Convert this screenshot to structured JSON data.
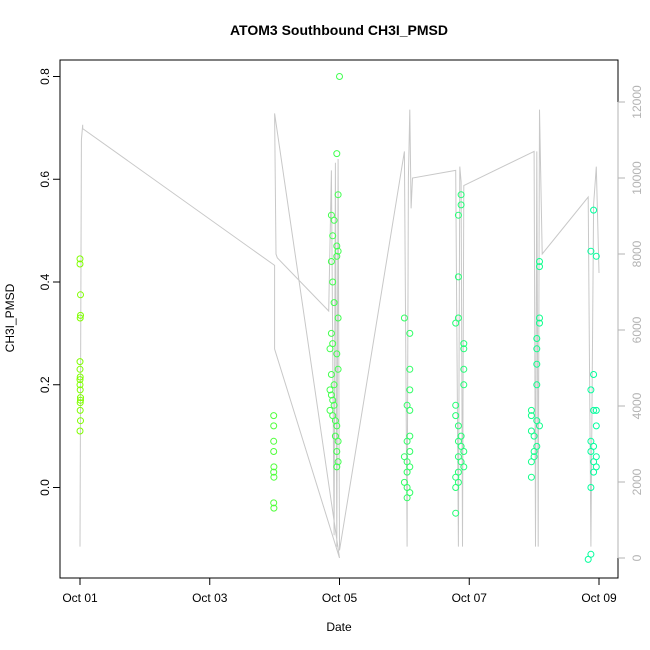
{
  "chart_data": {
    "type": "scatter",
    "title": "ATOM3 Southbound CH3I_PMSD",
    "xlabel": "Date",
    "ylabel": "CH3I_PMSD",
    "xlim": [
      "2016-10-01",
      "2016-10-09"
    ],
    "ylim": [
      -0.14,
      0.8
    ],
    "x_ticks": [
      {
        "value": "2016-10-01",
        "label": "Oct 01"
      },
      {
        "value": "2016-10-03",
        "label": "Oct 03"
      },
      {
        "value": "2016-10-05",
        "label": "Oct 05"
      },
      {
        "value": "2016-10-07",
        "label": "Oct 07"
      },
      {
        "value": "2016-10-09",
        "label": "Oct 09"
      }
    ],
    "y_ticks": [
      0.0,
      0.2,
      0.4,
      0.6,
      0.8
    ],
    "y_tick_labels": [
      "0.0",
      "0.2",
      "0.4",
      "0.6",
      "0.8"
    ],
    "y2_range": [
      0,
      12000
    ],
    "y2_ticks": [
      0,
      2000,
      4000,
      6000,
      8000,
      10000,
      12000
    ],
    "y2_tick_labels": [
      "0",
      "2000",
      "4000",
      "6000",
      "8000",
      "10000",
      "12000"
    ],
    "grid": false,
    "legend": "none",
    "colors": {
      "line": "#c8c8c8",
      "axis": "#000000",
      "right_axis": "#b3b3b3"
    },
    "series": [
      {
        "marker": "open-circle",
        "color_scale": [
          "#80ff00",
          "#00ff9f"
        ],
        "points": [
          {
            "x": "2016-10-01T00:00",
            "y": 0.445
          },
          {
            "x": "2016-10-01T00:00",
            "y": 0.435
          },
          {
            "x": "2016-10-01T00:05",
            "y": 0.33
          },
          {
            "x": "2016-10-01T00:10",
            "y": 0.335
          },
          {
            "x": "2016-10-01T00:10",
            "y": 0.375
          },
          {
            "x": "2016-10-01T00:00",
            "y": 0.245
          },
          {
            "x": "2016-10-01T00:00",
            "y": 0.23
          },
          {
            "x": "2016-10-01T00:05",
            "y": 0.215
          },
          {
            "x": "2016-10-01T00:00",
            "y": 0.21
          },
          {
            "x": "2016-10-01T00:00",
            "y": 0.2
          },
          {
            "x": "2016-10-01T00:05",
            "y": 0.19
          },
          {
            "x": "2016-10-01T00:10",
            "y": 0.175
          },
          {
            "x": "2016-10-01T00:10",
            "y": 0.17
          },
          {
            "x": "2016-10-01T00:05",
            "y": 0.165
          },
          {
            "x": "2016-10-01T00:05",
            "y": 0.15
          },
          {
            "x": "2016-10-01T00:10",
            "y": 0.13
          },
          {
            "x": "2016-10-01T00:00",
            "y": 0.11
          },
          {
            "x": "2016-10-03T23:40",
            "y": 0.14
          },
          {
            "x": "2016-10-03T23:40",
            "y": 0.12
          },
          {
            "x": "2016-10-03T23:40",
            "y": 0.09
          },
          {
            "x": "2016-10-03T23:40",
            "y": 0.07
          },
          {
            "x": "2016-10-03T23:45",
            "y": 0.04
          },
          {
            "x": "2016-10-03T23:40",
            "y": 0.03
          },
          {
            "x": "2016-10-03T23:45",
            "y": 0.02
          },
          {
            "x": "2016-10-03T23:40",
            "y": -0.03
          },
          {
            "x": "2016-10-03T23:45",
            "y": -0.04
          },
          {
            "x": "2016-10-04T21:00",
            "y": 0.53
          },
          {
            "x": "2016-10-04T22:00",
            "y": 0.52
          },
          {
            "x": "2016-10-04T21:30",
            "y": 0.49
          },
          {
            "x": "2016-10-04T21:00",
            "y": 0.44
          },
          {
            "x": "2016-10-04T21:30",
            "y": 0.4
          },
          {
            "x": "2016-10-04T22:00",
            "y": 0.36
          },
          {
            "x": "2016-10-04T21:00",
            "y": 0.3
          },
          {
            "x": "2016-10-04T21:30",
            "y": 0.28
          },
          {
            "x": "2016-10-04T20:30",
            "y": 0.27
          },
          {
            "x": "2016-10-04T21:00",
            "y": 0.22
          },
          {
            "x": "2016-10-04T22:00",
            "y": 0.2
          },
          {
            "x": "2016-10-04T20:30",
            "y": 0.19
          },
          {
            "x": "2016-10-04T21:00",
            "y": 0.18
          },
          {
            "x": "2016-10-04T21:30",
            "y": 0.17
          },
          {
            "x": "2016-10-04T22:00",
            "y": 0.16
          },
          {
            "x": "2016-10-04T20:30",
            "y": 0.15
          },
          {
            "x": "2016-10-04T21:30",
            "y": 0.14
          },
          {
            "x": "2016-10-04T22:30",
            "y": 0.13
          },
          {
            "x": "2016-10-04T23:00",
            "y": 0.12
          },
          {
            "x": "2016-10-04T22:30",
            "y": 0.1
          },
          {
            "x": "2016-10-04T23:30",
            "y": 0.09
          },
          {
            "x": "2016-10-04T23:00",
            "y": 0.07
          },
          {
            "x": "2016-10-04T23:30",
            "y": 0.05
          },
          {
            "x": "2016-10-04T23:00",
            "y": 0.04
          },
          {
            "x": "2016-10-04T23:00",
            "y": 0.65
          },
          {
            "x": "2016-10-04T23:30",
            "y": 0.57
          },
          {
            "x": "2016-10-04T23:00",
            "y": 0.47
          },
          {
            "x": "2016-10-04T23:30",
            "y": 0.46
          },
          {
            "x": "2016-10-04T23:00",
            "y": 0.45
          },
          {
            "x": "2016-10-04T23:30",
            "y": 0.33
          },
          {
            "x": "2016-10-04T23:00",
            "y": 0.26
          },
          {
            "x": "2016-10-04T23:30",
            "y": 0.23
          },
          {
            "x": "2016-10-05T00:00",
            "y": 0.8
          },
          {
            "x": "2016-10-06T00:00",
            "y": 0.33
          },
          {
            "x": "2016-10-06T02:00",
            "y": 0.3
          },
          {
            "x": "2016-10-06T02:00",
            "y": 0.23
          },
          {
            "x": "2016-10-06T02:00",
            "y": 0.19
          },
          {
            "x": "2016-10-06T01:00",
            "y": 0.16
          },
          {
            "x": "2016-10-06T02:00",
            "y": 0.15
          },
          {
            "x": "2016-10-06T02:00",
            "y": 0.1
          },
          {
            "x": "2016-10-06T01:00",
            "y": 0.09
          },
          {
            "x": "2016-10-06T02:00",
            "y": 0.07
          },
          {
            "x": "2016-10-06T00:00",
            "y": 0.06
          },
          {
            "x": "2016-10-06T01:00",
            "y": 0.05
          },
          {
            "x": "2016-10-06T02:00",
            "y": 0.04
          },
          {
            "x": "2016-10-06T01:00",
            "y": 0.03
          },
          {
            "x": "2016-10-06T00:00",
            "y": 0.01
          },
          {
            "x": "2016-10-06T01:00",
            "y": 0.0
          },
          {
            "x": "2016-10-06T02:00",
            "y": -0.01
          },
          {
            "x": "2016-10-06T01:00",
            "y": -0.02
          },
          {
            "x": "2016-10-06T21:00",
            "y": 0.57
          },
          {
            "x": "2016-10-06T21:00",
            "y": 0.55
          },
          {
            "x": "2016-10-06T20:00",
            "y": 0.53
          },
          {
            "x": "2016-10-06T20:00",
            "y": 0.41
          },
          {
            "x": "2016-10-06T20:00",
            "y": 0.33
          },
          {
            "x": "2016-10-06T19:00",
            "y": 0.32
          },
          {
            "x": "2016-10-06T22:00",
            "y": 0.28
          },
          {
            "x": "2016-10-06T22:00",
            "y": 0.27
          },
          {
            "x": "2016-10-06T22:00",
            "y": 0.23
          },
          {
            "x": "2016-10-06T22:00",
            "y": 0.2
          },
          {
            "x": "2016-10-06T19:00",
            "y": 0.16
          },
          {
            "x": "2016-10-06T19:00",
            "y": 0.14
          },
          {
            "x": "2016-10-06T20:00",
            "y": 0.12
          },
          {
            "x": "2016-10-06T21:00",
            "y": 0.1
          },
          {
            "x": "2016-10-06T20:00",
            "y": 0.09
          },
          {
            "x": "2016-10-06T21:00",
            "y": 0.08
          },
          {
            "x": "2016-10-06T22:00",
            "y": 0.07
          },
          {
            "x": "2016-10-06T20:00",
            "y": 0.06
          },
          {
            "x": "2016-10-06T21:00",
            "y": 0.05
          },
          {
            "x": "2016-10-06T22:00",
            "y": 0.04
          },
          {
            "x": "2016-10-06T20:00",
            "y": 0.03
          },
          {
            "x": "2016-10-06T19:00",
            "y": 0.02
          },
          {
            "x": "2016-10-06T20:00",
            "y": 0.01
          },
          {
            "x": "2016-10-06T19:00",
            "y": 0.0
          },
          {
            "x": "2016-10-06T19:00",
            "y": -0.05
          },
          {
            "x": "2016-10-08T02:00",
            "y": 0.44
          },
          {
            "x": "2016-10-08T02:00",
            "y": 0.43
          },
          {
            "x": "2016-10-08T02:00",
            "y": 0.33
          },
          {
            "x": "2016-10-08T02:00",
            "y": 0.32
          },
          {
            "x": "2016-10-08T01:00",
            "y": 0.29
          },
          {
            "x": "2016-10-08T01:00",
            "y": 0.27
          },
          {
            "x": "2016-10-08T01:00",
            "y": 0.24
          },
          {
            "x": "2016-10-08T01:00",
            "y": 0.2
          },
          {
            "x": "2016-10-07T23:00",
            "y": 0.15
          },
          {
            "x": "2016-10-07T23:00",
            "y": 0.14
          },
          {
            "x": "2016-10-08T01:00",
            "y": 0.13
          },
          {
            "x": "2016-10-08T02:00",
            "y": 0.12
          },
          {
            "x": "2016-10-07T23:00",
            "y": 0.11
          },
          {
            "x": "2016-10-08T00:00",
            "y": 0.1
          },
          {
            "x": "2016-10-08T01:00",
            "y": 0.08
          },
          {
            "x": "2016-10-08T00:00",
            "y": 0.07
          },
          {
            "x": "2016-10-08T00:00",
            "y": 0.06
          },
          {
            "x": "2016-10-07T23:00",
            "y": 0.05
          },
          {
            "x": "2016-10-07T23:00",
            "y": 0.02
          },
          {
            "x": "2016-10-08T22:00",
            "y": 0.54
          },
          {
            "x": "2016-10-08T21:00",
            "y": 0.46
          },
          {
            "x": "2016-10-08T23:00",
            "y": 0.45
          },
          {
            "x": "2016-10-08T22:00",
            "y": 0.22
          },
          {
            "x": "2016-10-08T21:00",
            "y": 0.19
          },
          {
            "x": "2016-10-08T23:00",
            "y": 0.15
          },
          {
            "x": "2016-10-08T22:00",
            "y": 0.15
          },
          {
            "x": "2016-10-08T23:00",
            "y": 0.12
          },
          {
            "x": "2016-10-08T21:00",
            "y": 0.09
          },
          {
            "x": "2016-10-08T22:00",
            "y": 0.08
          },
          {
            "x": "2016-10-08T21:00",
            "y": 0.07
          },
          {
            "x": "2016-10-08T23:00",
            "y": 0.06
          },
          {
            "x": "2016-10-08T22:00",
            "y": 0.05
          },
          {
            "x": "2016-10-08T23:00",
            "y": 0.04
          },
          {
            "x": "2016-10-08T22:00",
            "y": 0.03
          },
          {
            "x": "2016-10-08T21:00",
            "y": 0.0
          },
          {
            "x": "2016-10-08T21:00",
            "y": -0.13
          },
          {
            "x": "2016-10-08T20:00",
            "y": -0.14
          }
        ]
      },
      {
        "axis": "right",
        "type": "line",
        "color": "#c8c8c8",
        "points": [
          {
            "x": "2016-10-01T00:00",
            "y": 300
          },
          {
            "x": "2016-10-01T00:30",
            "y": 11000
          },
          {
            "x": "2016-10-01T01:00",
            "y": 11400
          },
          {
            "x": "2016-10-01T01:00",
            "y": 11300
          },
          {
            "x": "2016-10-04T00:00",
            "y": 7700
          },
          {
            "x": "2016-10-04T00:00",
            "y": 5500
          },
          {
            "x": "2016-10-05T00:00",
            "y": 0
          },
          {
            "x": "2016-10-04T00:00",
            "y": 11700
          },
          {
            "x": "2016-10-04T00:30",
            "y": 8000
          },
          {
            "x": "2016-10-04T01:00",
            "y": 7900
          },
          {
            "x": "2016-10-04T20:00",
            "y": 6500
          },
          {
            "x": "2016-10-04T21:00",
            "y": 10200
          },
          {
            "x": "2016-10-04T22:00",
            "y": 600
          },
          {
            "x": "2016-10-04T22:30",
            "y": 10400
          },
          {
            "x": "2016-10-04T23:00",
            "y": 300
          },
          {
            "x": "2016-10-04T23:30",
            "y": 10500
          },
          {
            "x": "2016-10-05T00:00",
            "y": 200
          },
          {
            "x": "2016-10-06T00:00",
            "y": 10700
          },
          {
            "x": "2016-10-06T01:00",
            "y": 300
          },
          {
            "x": "2016-10-06T01:30",
            "y": 10000
          },
          {
            "x": "2016-10-06T02:00",
            "y": 11800
          },
          {
            "x": "2016-10-06T02:30",
            "y": 9200
          },
          {
            "x": "2016-10-06T03:00",
            "y": 10000
          },
          {
            "x": "2016-10-06T19:00",
            "y": 10200
          },
          {
            "x": "2016-10-06T20:00",
            "y": 300
          },
          {
            "x": "2016-10-06T20:30",
            "y": 10300
          },
          {
            "x": "2016-10-06T21:00",
            "y": 9900
          },
          {
            "x": "2016-10-06T21:30",
            "y": 300
          },
          {
            "x": "2016-10-06T22:00",
            "y": 9800
          },
          {
            "x": "2016-10-08T00:00",
            "y": 10700
          },
          {
            "x": "2016-10-08T00:30",
            "y": 300
          },
          {
            "x": "2016-10-08T01:00",
            "y": 10700
          },
          {
            "x": "2016-10-08T01:30",
            "y": 300
          },
          {
            "x": "2016-10-08T02:00",
            "y": 11800
          },
          {
            "x": "2016-10-08T03:00",
            "y": 8000
          },
          {
            "x": "2016-10-08T20:00",
            "y": 9500
          },
          {
            "x": "2016-10-08T21:00",
            "y": 300
          },
          {
            "x": "2016-10-08T22:00",
            "y": 9300
          },
          {
            "x": "2016-10-08T23:00",
            "y": 10300
          },
          {
            "x": "2016-10-09T00:00",
            "y": 7500
          }
        ]
      }
    ]
  }
}
